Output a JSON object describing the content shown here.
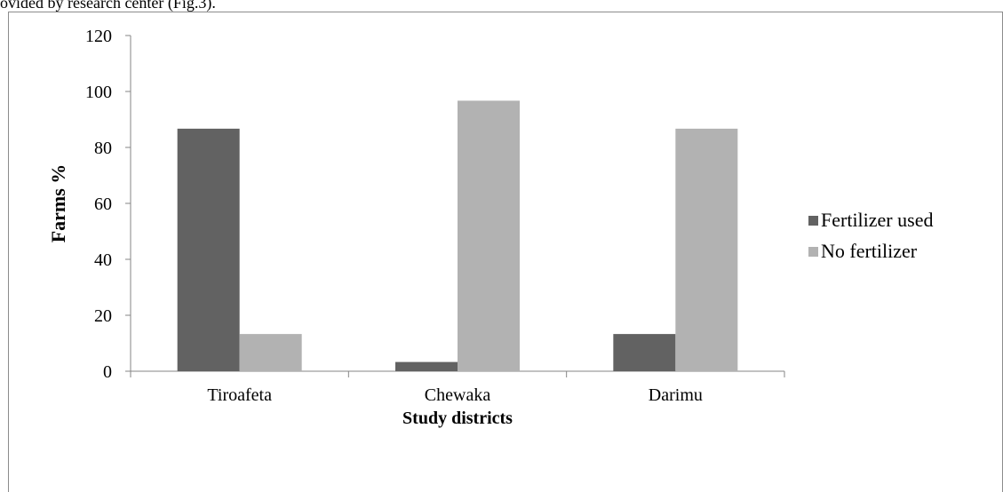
{
  "page": {
    "top_text": "ovided by research center (Fig.3)."
  },
  "chart_data": {
    "type": "bar",
    "categories": [
      "Tiroafeta",
      "Chewaka",
      "Darimu"
    ],
    "series": [
      {
        "name": "Fertilizer used",
        "values": [
          86.7,
          3.3,
          13.3
        ],
        "color": "#626262"
      },
      {
        "name": "No fertilizer",
        "values": [
          13.3,
          96.7,
          86.7
        ],
        "color": "#b2b2b2"
      }
    ],
    "xlabel": "Study districts",
    "ylabel": "Farms %",
    "ylim": [
      0,
      120
    ],
    "yticks": [
      0,
      20,
      40,
      60,
      80,
      100,
      120
    ],
    "grid": false,
    "legend": "right"
  }
}
